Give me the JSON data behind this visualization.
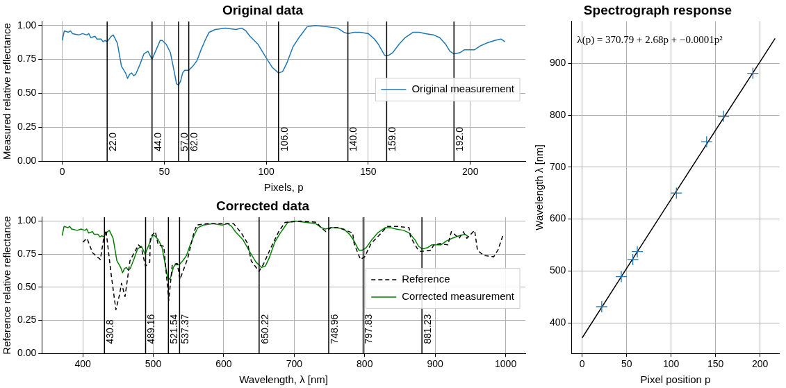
{
  "chart_data": [
    {
      "type": "line",
      "title": "Original data",
      "xlabel": "Pixels, p",
      "ylabel": "Measured relative reflectance",
      "xlim": [
        -10,
        227
      ],
      "ylim": [
        0,
        1.03
      ],
      "xticks": [
        0,
        50,
        100,
        150,
        200
      ],
      "yticks": [
        {
          "value": 0,
          "label": "0.00"
        },
        {
          "value": 0.25,
          "label": "0.25"
        },
        {
          "value": 0.5,
          "label": "0.50"
        },
        {
          "value": 0.75,
          "label": "0.75"
        },
        {
          "value": 1,
          "label": "1.00"
        }
      ],
      "grid": true,
      "legend": "right",
      "marker": "none",
      "series": [
        {
          "name": "Original measurement",
          "color": "#1f77b4",
          "line_style": "solid",
          "x": [
            0,
            1,
            3,
            4,
            5,
            8,
            10,
            12,
            13,
            14,
            16,
            17,
            19,
            20,
            21,
            22,
            24,
            25,
            27,
            29,
            31,
            32,
            33,
            34,
            35,
            36,
            38,
            40,
            42,
            44,
            46,
            48,
            49,
            51,
            53,
            55,
            56,
            57,
            58,
            59,
            60,
            62,
            64,
            66,
            68,
            70,
            72,
            75,
            80,
            85,
            88,
            90,
            92,
            96,
            100,
            103,
            106,
            108,
            110,
            113,
            116,
            118,
            120,
            124,
            130,
            135,
            138,
            140,
            143,
            146,
            150,
            153,
            155,
            158,
            160,
            162,
            165,
            168,
            172,
            175,
            178,
            182,
            185,
            188,
            190,
            192,
            195,
            197,
            200,
            202,
            205,
            208,
            212,
            215,
            217
          ],
          "values": [
            0.89,
            0.96,
            0.95,
            0.96,
            0.94,
            0.93,
            0.94,
            0.93,
            0.94,
            0.91,
            0.92,
            0.9,
            0.9,
            0.88,
            0.89,
            0.88,
            0.92,
            0.93,
            0.87,
            0.7,
            0.65,
            0.61,
            0.64,
            0.65,
            0.63,
            0.64,
            0.71,
            0.79,
            0.81,
            0.75,
            0.82,
            0.89,
            0.89,
            0.86,
            0.8,
            0.65,
            0.57,
            0.56,
            0.59,
            0.65,
            0.67,
            0.67,
            0.7,
            0.74,
            0.82,
            0.89,
            0.95,
            0.97,
            0.98,
            0.97,
            0.98,
            0.96,
            0.92,
            0.86,
            0.76,
            0.69,
            0.65,
            0.66,
            0.72,
            0.84,
            0.91,
            0.95,
            0.99,
            1.0,
            0.99,
            0.98,
            0.95,
            0.94,
            0.95,
            0.95,
            0.94,
            0.9,
            0.86,
            0.78,
            0.78,
            0.8,
            0.86,
            0.91,
            0.95,
            0.95,
            0.94,
            0.93,
            0.91,
            0.86,
            0.81,
            0.79,
            0.8,
            0.82,
            0.82,
            0.82,
            0.85,
            0.87,
            0.89,
            0.9,
            0.88
          ]
        }
      ],
      "ref_lines": [
        {
          "axis": "x",
          "value": 22,
          "label": "22.0",
          "color": "#000000"
        },
        {
          "axis": "x",
          "value": 44,
          "label": "44.0",
          "color": "#000000"
        },
        {
          "axis": "x",
          "value": 57,
          "label": "57.0",
          "color": "#000000"
        },
        {
          "axis": "x",
          "value": 62,
          "label": "62.0",
          "color": "#000000"
        },
        {
          "axis": "x",
          "value": 106,
          "label": "106.0",
          "color": "#000000"
        },
        {
          "axis": "x",
          "value": 140,
          "label": "140.0",
          "color": "#000000"
        },
        {
          "axis": "x",
          "value": 159,
          "label": "159.0",
          "color": "#000000"
        },
        {
          "axis": "x",
          "value": 192,
          "label": "192.0",
          "color": "#000000"
        }
      ]
    },
    {
      "type": "line",
      "title": "Corrected data",
      "xlabel": "Wavelength, λ [nm]",
      "ylabel": "Reference relative reflectance",
      "xlim": [
        342,
        1028
      ],
      "ylim": [
        0,
        1.03
      ],
      "xticks": [
        400,
        500,
        600,
        700,
        800,
        900,
        1000
      ],
      "yticks": [
        {
          "value": 0,
          "label": "0.00"
        },
        {
          "value": 0.25,
          "label": "0.25"
        },
        {
          "value": 0.5,
          "label": "0.50"
        },
        {
          "value": 0.75,
          "label": "0.75"
        },
        {
          "value": 1,
          "label": "1.00"
        }
      ],
      "grid": true,
      "legend": "right",
      "marker": "none",
      "series": [
        {
          "name": "Reference",
          "color": "#000000",
          "line_style": "dashed",
          "x": [
            400,
            406,
            414,
            425,
            430,
            433,
            440,
            447,
            452,
            455,
            460,
            467,
            479,
            483,
            489,
            495,
            496,
            503,
            507,
            515,
            522,
            527,
            534,
            538,
            549,
            558,
            562,
            576,
            598,
            614,
            625,
            634,
            639,
            650,
            656,
            667,
            678,
            687,
            709,
            732,
            738,
            745,
            752,
            763,
            783,
            785,
            794,
            800,
            809,
            820,
            832,
            847,
            863,
            865,
            876,
            880,
            894,
            898,
            907,
            918,
            923,
            934,
            940,
            945,
            956,
            960,
            969,
            983,
            989,
            996
          ],
          "values": [
            0.84,
            0.87,
            0.76,
            0.71,
            0.88,
            0.93,
            0.61,
            0.33,
            0.44,
            0.53,
            0.43,
            0.7,
            0.82,
            0.8,
            0.66,
            0.69,
            0.88,
            0.92,
            0.82,
            0.81,
            0.4,
            0.67,
            0.68,
            0.56,
            0.72,
            0.92,
            0.97,
            0.98,
            0.98,
            0.98,
            0.91,
            0.83,
            0.7,
            0.62,
            0.67,
            0.8,
            0.92,
            0.99,
            1.0,
            0.99,
            0.95,
            0.92,
            0.95,
            0.95,
            0.91,
            0.83,
            0.71,
            0.73,
            0.83,
            0.89,
            0.96,
            0.96,
            0.95,
            0.88,
            0.78,
            0.77,
            0.78,
            0.82,
            0.83,
            0.82,
            0.92,
            0.87,
            0.92,
            0.87,
            0.93,
            0.78,
            0.74,
            0.73,
            0.78,
            0.89
          ]
        },
        {
          "name": "Corrected measurement",
          "color": "#008000",
          "line_style": "solid",
          "x": [
            370.8,
            373.5,
            378.8,
            381.5,
            384.2,
            392.2,
            397.6,
            403.0,
            405.6,
            408.3,
            413.7,
            416.3,
            421.7,
            424.4,
            427.0,
            429.7,
            435.1,
            437.7,
            443.1,
            448.4,
            453.8,
            456.5,
            459.1,
            461.8,
            464.5,
            467.2,
            472.5,
            477.8,
            483.2,
            488.5,
            493.8,
            499.2,
            501.8,
            507.2,
            512.5,
            517.8,
            520.6,
            523.2,
            525.9,
            528.5,
            531.2,
            536.6,
            541.9,
            547.2,
            552.5,
            557.9,
            563.2,
            571.1,
            584.5,
            597.9,
            605.9,
            611.2,
            616.5,
            627.2,
            637.8,
            645.8,
            653.7,
            659.1,
            664.4,
            672.4,
            680.3,
            685.6,
            690.9,
            701.5,
            717.5,
            730.7,
            738.7,
            744.0,
            751.9,
            759.9,
            770.5,
            778.5,
            783.8,
            791.7,
            797.0,
            802.3,
            810.3,
            818.2,
            828.8,
            836.7,
            844.6,
            855.2,
            863.2,
            871.1,
            876.4,
            881.7,
            889.6,
            894.9,
            902.8,
            908.1,
            916.0,
            924.0,
            934.5,
            942.5,
            947.6
          ],
          "values": [
            0.89,
            0.96,
            0.95,
            0.96,
            0.94,
            0.93,
            0.94,
            0.93,
            0.94,
            0.91,
            0.92,
            0.9,
            0.9,
            0.88,
            0.89,
            0.88,
            0.92,
            0.93,
            0.87,
            0.7,
            0.65,
            0.61,
            0.64,
            0.65,
            0.63,
            0.64,
            0.71,
            0.79,
            0.81,
            0.75,
            0.82,
            0.89,
            0.89,
            0.86,
            0.8,
            0.65,
            0.57,
            0.56,
            0.59,
            0.65,
            0.67,
            0.67,
            0.7,
            0.74,
            0.82,
            0.89,
            0.95,
            0.97,
            0.98,
            0.97,
            0.98,
            0.96,
            0.92,
            0.86,
            0.76,
            0.69,
            0.65,
            0.66,
            0.72,
            0.84,
            0.91,
            0.95,
            0.99,
            1.0,
            0.99,
            0.98,
            0.95,
            0.94,
            0.95,
            0.95,
            0.94,
            0.9,
            0.86,
            0.78,
            0.78,
            0.8,
            0.86,
            0.91,
            0.95,
            0.95,
            0.94,
            0.93,
            0.91,
            0.86,
            0.81,
            0.79,
            0.8,
            0.82,
            0.82,
            0.82,
            0.85,
            0.87,
            0.89,
            0.9,
            0.88
          ]
        }
      ],
      "ref_lines": [
        {
          "axis": "x",
          "value": 430.8,
          "label": "430.8",
          "color": "#000000"
        },
        {
          "axis": "x",
          "value": 489.16,
          "label": "489.16",
          "color": "#000000"
        },
        {
          "axis": "x",
          "value": 521.54,
          "label": "521.54",
          "color": "#000000"
        },
        {
          "axis": "x",
          "value": 537.37,
          "label": "537.37",
          "color": "#000000"
        },
        {
          "axis": "x",
          "value": 650.22,
          "label": "650.22",
          "color": "#000000"
        },
        {
          "axis": "x",
          "value": 748.96,
          "label": "748.96",
          "color": "#000000"
        },
        {
          "axis": "x",
          "value": 797.83,
          "label": "797.83",
          "color": "#000000"
        },
        {
          "axis": "x",
          "value": 881.23,
          "label": "881.23",
          "color": "#000000"
        }
      ]
    },
    {
      "type": "scatter",
      "title": "Spectrograph response",
      "xlabel": "Pixel position p",
      "ylabel": "Wavelength λ [nm]",
      "xlim": [
        -12,
        222
      ],
      "ylim": [
        341,
        981
      ],
      "xticks": [
        0,
        50,
        100,
        150,
        200
      ],
      "yticks": [
        400,
        500,
        600,
        700,
        800,
        900
      ],
      "grid": true,
      "annotations": [
        "λ(p) = 370.79 + 2.68p + −0.0001p²"
      ],
      "series": [
        {
          "color": "#1f77b4",
          "marker": "cross",
          "x": [
            22,
            44,
            57,
            62,
            106,
            140,
            159,
            192
          ],
          "values": [
            431,
            489,
            522,
            537,
            650,
            749,
            798,
            881
          ]
        },
        {
          "type": "line",
          "color": "#000000",
          "marker": "none",
          "line_style": "solid",
          "x": [
            0,
            50,
            100,
            150,
            200,
            217
          ],
          "values": [
            371,
            505,
            638,
            771,
            903,
            948
          ]
        }
      ]
    }
  ]
}
